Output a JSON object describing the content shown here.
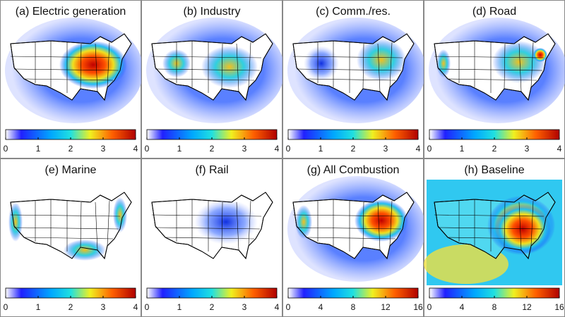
{
  "panels": [
    {
      "title": "(a) Electric generation",
      "colorbar": {
        "ticks": [
          0,
          1,
          2,
          3,
          4
        ]
      }
    },
    {
      "title": "(b) Industry",
      "colorbar": {
        "ticks": [
          0,
          1,
          2,
          3,
          4
        ]
      }
    },
    {
      "title": "(c) Comm./res.",
      "colorbar": {
        "ticks": [
          0,
          1,
          2,
          3,
          4
        ]
      }
    },
    {
      "title": "(d) Road",
      "colorbar": {
        "ticks": [
          0,
          1,
          2,
          3,
          4
        ]
      }
    },
    {
      "title": "(e) Marine",
      "colorbar": {
        "ticks": [
          0,
          1,
          2,
          3,
          4
        ]
      }
    },
    {
      "title": "(f) Rail",
      "colorbar": {
        "ticks": [
          0,
          1,
          2,
          3,
          4
        ]
      }
    },
    {
      "title": "(g)  All Combustion",
      "colorbar": {
        "ticks": [
          0,
          4,
          8,
          12,
          16
        ]
      }
    },
    {
      "title": "(h) Baseline",
      "colorbar": {
        "ticks": [
          0,
          4,
          8,
          12,
          16
        ]
      }
    }
  ]
}
